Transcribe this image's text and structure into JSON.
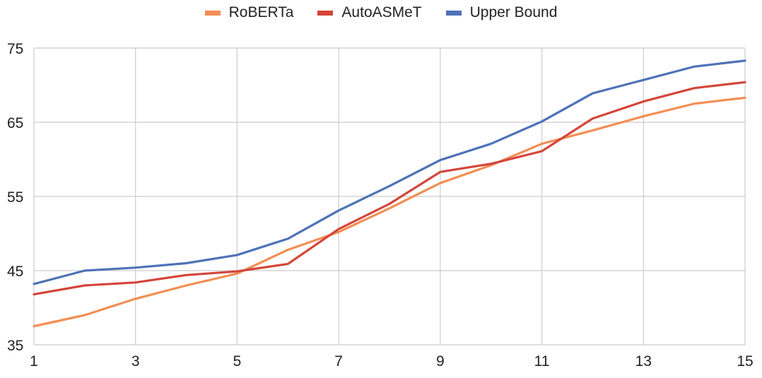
{
  "chart_data": {
    "type": "line",
    "title": "",
    "xlabel": "",
    "ylabel": "",
    "x": [
      1,
      2,
      3,
      4,
      5,
      6,
      7,
      8,
      9,
      10,
      11,
      12,
      13,
      14,
      15
    ],
    "xticks": [
      "1",
      "3",
      "5",
      "7",
      "9",
      "11",
      "13",
      "15"
    ],
    "yticks": [
      "35",
      "45",
      "55",
      "65",
      "75"
    ],
    "xlim": [
      1,
      15
    ],
    "ylim": [
      35,
      75
    ],
    "grid": true,
    "legend_position": "top-center",
    "series": [
      {
        "name": "RoBERTa",
        "color": "#f28e54",
        "values": [
          37.5,
          39,
          41.2,
          43,
          44.6,
          47.8,
          50.2,
          53.4,
          56.8,
          59.2,
          62.1,
          63.9,
          65.8,
          67.5,
          68.3
        ]
      },
      {
        "name": "AutoASMeT",
        "color": "#d4453a",
        "values": [
          41.8,
          43,
          43.4,
          44.4,
          44.9,
          45.9,
          50.6,
          54,
          58.3,
          59.4,
          61.1,
          65.5,
          67.8,
          69.6,
          70.4
        ]
      },
      {
        "name": "Upper Bound",
        "color": "#4e72b8",
        "values": [
          43.2,
          45,
          45.4,
          46,
          47.1,
          49.3,
          53.1,
          56.4,
          59.9,
          62.1,
          65.1,
          68.9,
          70.7,
          72.5,
          73.3
        ]
      }
    ]
  }
}
